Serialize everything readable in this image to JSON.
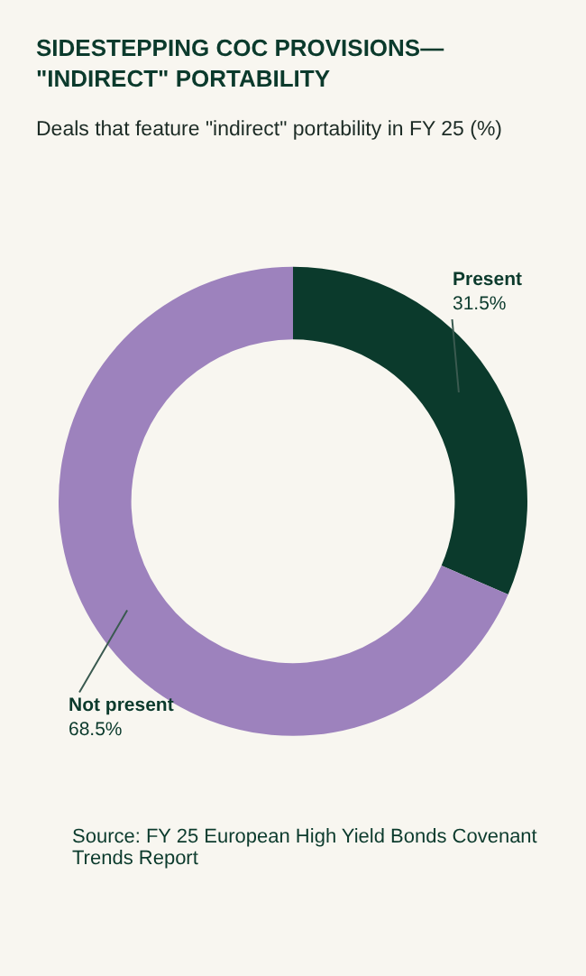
{
  "chart_data": {
    "type": "donut",
    "title": "SIDESTEPPING COC PROVISIONS—\n\"INDIRECT\" PORTABILITY",
    "subtitle": "Deals that feature \"indirect\" portability in FY 25 (%)",
    "categories": [
      "Present",
      "Not present"
    ],
    "values": [
      31.5,
      68.5
    ],
    "value_labels": [
      "31.5%",
      "68.5%"
    ],
    "colors": [
      "#0b3a2c",
      "#9d82bd"
    ],
    "legend": false,
    "annotations": [
      "Source: FY 25 European High Yield Bonds Covenant Trends Report"
    ]
  }
}
